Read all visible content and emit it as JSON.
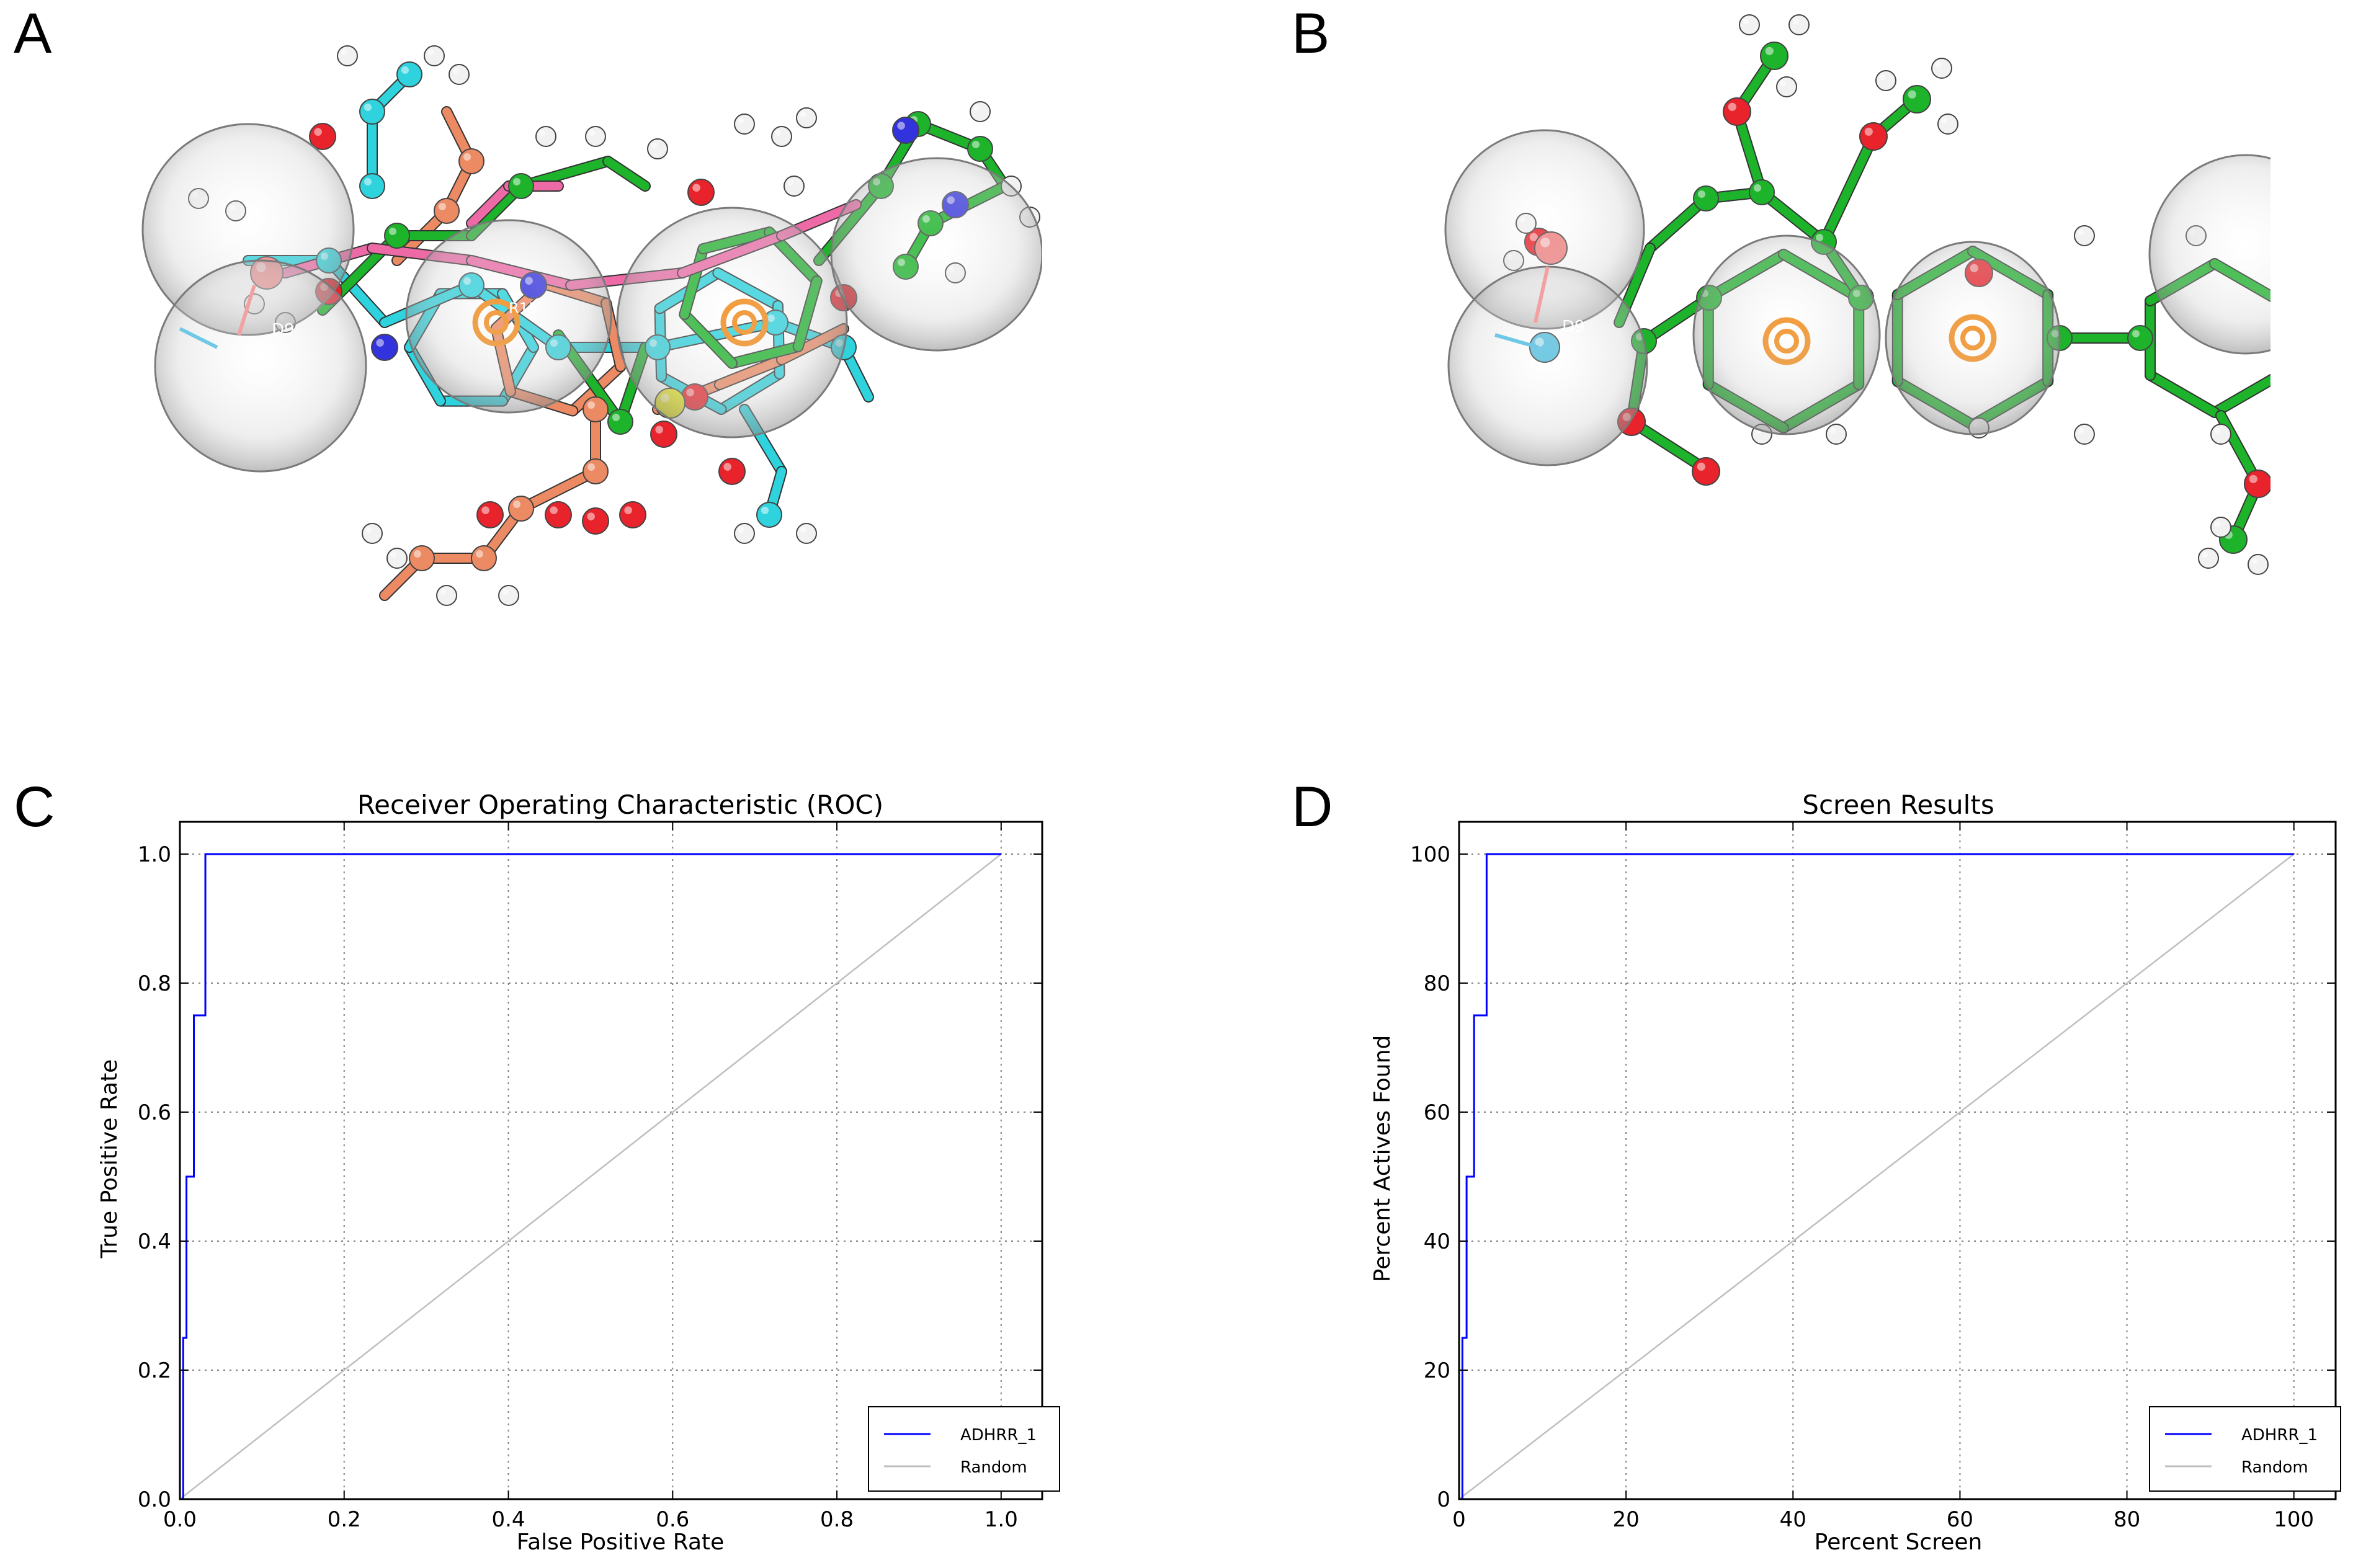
{
  "panels": {
    "a": "A",
    "b": "B",
    "c": "C",
    "d": "D"
  },
  "molecule_labels": {
    "a_d9": "D9",
    "a_r15": "R15",
    "b_d9": "D9"
  },
  "colors": {
    "series": "#0000ff",
    "random": "#bfbfbf",
    "grid": "#808080",
    "carbon_green": "#1db32b",
    "carbon_cyan": "#2ed3de",
    "carbon_salmon": "#ec8a63",
    "carbon_pink": "#ee6aa7",
    "oxygen": "#e8232b",
    "nitrogen": "#3333dd",
    "hydrogen": "#f2f2f2",
    "sulfur": "#e6e620",
    "ring": "#f08a1a",
    "sphere": "#b5b5b5",
    "donor": "#5bc0de",
    "acceptor": "#f08080"
  },
  "chart_data": [
    {
      "type": "line",
      "title": "Receiver Operating Characteristic (ROC)",
      "xlabel": "False Positive Rate",
      "ylabel": "True Positive Rate",
      "xlim": [
        0.0,
        1.05
      ],
      "ylim": [
        0.0,
        1.05
      ],
      "xticks": [
        "0.0",
        "0.2",
        "0.4",
        "0.6",
        "0.8",
        "1.0"
      ],
      "yticks": [
        "0.0",
        "0.2",
        "0.4",
        "0.6",
        "0.8",
        "1.0"
      ],
      "grid": true,
      "legend_position": "lower-right",
      "series": [
        {
          "name": "ADHRR_1",
          "x": [
            0.0,
            0.004,
            0.004,
            0.008,
            0.008,
            0.017,
            0.017,
            0.031,
            0.031,
            1.0
          ],
          "y": [
            0.0,
            0.0,
            0.25,
            0.25,
            0.5,
            0.5,
            0.75,
            0.75,
            1.0,
            1.0
          ]
        },
        {
          "name": "Random",
          "x": [
            0.0,
            1.0
          ],
          "y": [
            0.0,
            1.0
          ]
        }
      ]
    },
    {
      "type": "line",
      "title": "Screen Results",
      "xlabel": "Percent Screen",
      "ylabel": "Percent Actives Found",
      "xlim": [
        0,
        105
      ],
      "ylim": [
        0,
        105
      ],
      "xticks": [
        "0",
        "20",
        "40",
        "60",
        "80",
        "100"
      ],
      "yticks": [
        "0",
        "20",
        "40",
        "60",
        "80",
        "100"
      ],
      "grid": true,
      "legend_position": "lower-right",
      "series": [
        {
          "name": "ADHRR_1",
          "x": [
            0.0,
            0.4,
            0.4,
            0.9,
            0.9,
            1.8,
            1.8,
            3.3,
            3.3,
            100.0
          ],
          "y": [
            0,
            0,
            25,
            25,
            50,
            50,
            75,
            75,
            100,
            100
          ]
        },
        {
          "name": "Random",
          "x": [
            0,
            100
          ],
          "y": [
            0,
            100
          ]
        }
      ]
    }
  ]
}
